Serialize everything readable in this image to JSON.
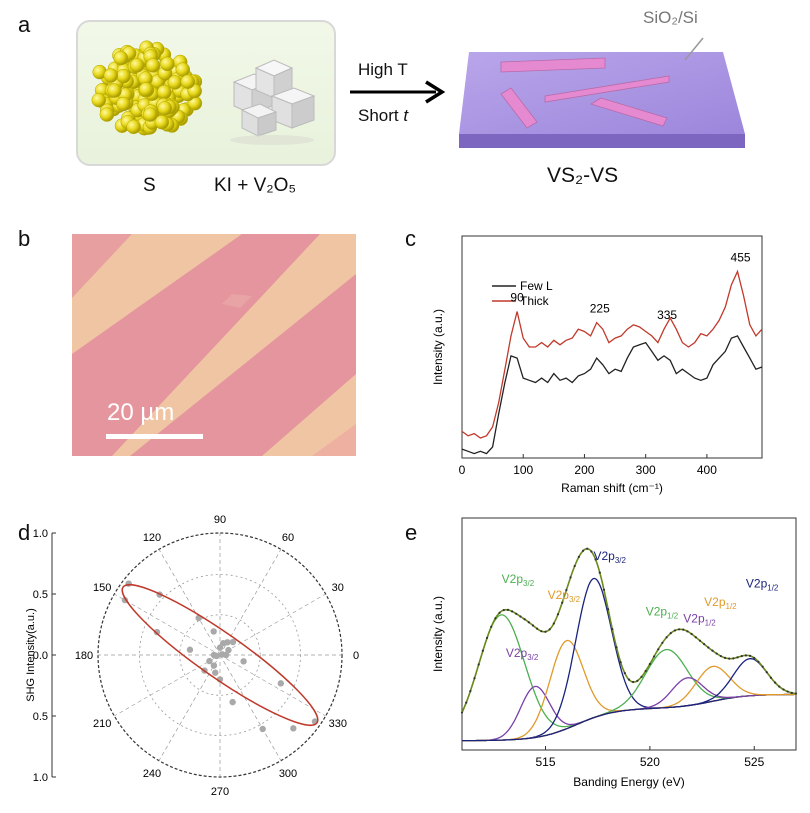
{
  "figure": {
    "panel_labels": [
      "a",
      "b",
      "c",
      "d",
      "e"
    ]
  },
  "panel_a": {
    "sulfur_label": "S",
    "precursor_label": "KI + V₂O₅",
    "arrow_top": "High T",
    "arrow_bottom_prefix": "Short ",
    "arrow_bottom_var": "t",
    "substrate_label": "SiO₂/Si",
    "product_label": "VS₂-VS"
  },
  "panel_b": {
    "scale_bar_label": "20 µm",
    "scale_bar_fraction_of_width": 0.34
  },
  "chart_data": [
    {
      "panel": "c",
      "type": "line",
      "xlabel": "Raman shift (cm⁻¹)",
      "ylabel": "Intensity (a.u.)",
      "xlim": [
        0,
        490
      ],
      "ylim": [
        0,
        1
      ],
      "xticks": [
        0,
        100,
        200,
        300,
        400
      ],
      "legend": [
        "Few L",
        "Thick"
      ],
      "legend_position": "top-left",
      "peak_labels": [
        {
          "label": "90",
          "x": 90
        },
        {
          "label": "225",
          "x": 225
        },
        {
          "label": "335",
          "x": 335
        },
        {
          "label": "455",
          "x": 455
        }
      ],
      "series": [
        {
          "name": "Few L",
          "color": "#222222",
          "x": [
            0,
            10,
            20,
            30,
            40,
            50,
            60,
            70,
            80,
            90,
            100,
            110,
            120,
            130,
            140,
            150,
            160,
            170,
            180,
            190,
            200,
            210,
            220,
            230,
            240,
            250,
            260,
            270,
            280,
            290,
            300,
            310,
            320,
            330,
            340,
            350,
            360,
            370,
            380,
            390,
            400,
            410,
            420,
            430,
            440,
            450,
            460,
            470,
            480,
            490
          ],
          "values": [
            0.04,
            0.03,
            0.02,
            0.03,
            0.02,
            0.05,
            0.2,
            0.34,
            0.46,
            0.45,
            0.36,
            0.35,
            0.34,
            0.36,
            0.34,
            0.38,
            0.35,
            0.36,
            0.34,
            0.37,
            0.38,
            0.4,
            0.45,
            0.42,
            0.38,
            0.4,
            0.39,
            0.45,
            0.5,
            0.51,
            0.52,
            0.48,
            0.44,
            0.46,
            0.44,
            0.38,
            0.4,
            0.38,
            0.36,
            0.35,
            0.36,
            0.42,
            0.45,
            0.48,
            0.54,
            0.55,
            0.5,
            0.45,
            0.4,
            0.41
          ]
        },
        {
          "name": "Thick",
          "color": "#c0392b",
          "x": [
            0,
            10,
            20,
            30,
            40,
            50,
            60,
            70,
            80,
            90,
            100,
            110,
            120,
            130,
            140,
            150,
            160,
            170,
            180,
            190,
            200,
            210,
            220,
            230,
            240,
            250,
            260,
            270,
            280,
            290,
            300,
            310,
            320,
            330,
            340,
            350,
            360,
            370,
            380,
            390,
            400,
            410,
            420,
            430,
            440,
            450,
            460,
            470,
            480,
            490
          ],
          "values": [
            0.12,
            0.1,
            0.11,
            0.09,
            0.1,
            0.14,
            0.25,
            0.4,
            0.55,
            0.66,
            0.54,
            0.5,
            0.5,
            0.52,
            0.5,
            0.53,
            0.51,
            0.53,
            0.54,
            0.58,
            0.57,
            0.55,
            0.61,
            0.58,
            0.52,
            0.54,
            0.55,
            0.58,
            0.6,
            0.59,
            0.57,
            0.55,
            0.52,
            0.58,
            0.63,
            0.58,
            0.52,
            0.5,
            0.52,
            0.56,
            0.55,
            0.58,
            0.62,
            0.68,
            0.78,
            0.84,
            0.73,
            0.6,
            0.55,
            0.58
          ]
        }
      ]
    },
    {
      "panel": "d",
      "type": "scatter",
      "subtype": "polar",
      "ylabel": "SHG Intensity(a.u.)",
      "radial_ticks": [
        "1.0",
        "0.5",
        "0.0",
        "0.5",
        "1.0"
      ],
      "angle_ticks": [
        0,
        30,
        60,
        90,
        120,
        150,
        180,
        210,
        240,
        270,
        300,
        330
      ],
      "fit_color": "#c0392b",
      "fit_major_angle_deg": 145,
      "points": [
        {
          "angle": 0,
          "r": 0.05
        },
        {
          "angle": 15,
          "r": 0.02
        },
        {
          "angle": 30,
          "r": 0.08
        },
        {
          "angle": 45,
          "r": 0.15
        },
        {
          "angle": 60,
          "r": 0.12
        },
        {
          "angle": 75,
          "r": 0.1
        },
        {
          "angle": 90,
          "r": 0.06
        },
        {
          "angle": 105,
          "r": 0.2
        },
        {
          "angle": 120,
          "r": 0.35
        },
        {
          "angle": 135,
          "r": 0.7
        },
        {
          "angle": 142,
          "r": 0.95
        },
        {
          "angle": 150,
          "r": 0.9
        },
        {
          "angle": 160,
          "r": 0.55
        },
        {
          "angle": 170,
          "r": 0.25
        },
        {
          "angle": 180,
          "r": 0.05
        },
        {
          "angle": 195,
          "r": 0.03
        },
        {
          "angle": 210,
          "r": 0.1
        },
        {
          "angle": 225,
          "r": 0.18
        },
        {
          "angle": 240,
          "r": 0.1
        },
        {
          "angle": 255,
          "r": 0.15
        },
        {
          "angle": 270,
          "r": 0.2
        },
        {
          "angle": 285,
          "r": 0.4
        },
        {
          "angle": 300,
          "r": 0.7
        },
        {
          "angle": 315,
          "r": 0.85
        },
        {
          "angle": 325,
          "r": 0.95
        },
        {
          "angle": 335,
          "r": 0.55
        },
        {
          "angle": 345,
          "r": 0.2
        }
      ]
    },
    {
      "panel": "e",
      "type": "line",
      "xlabel": "Banding Energy (eV)",
      "ylabel": "Intensity (a.u.)",
      "xlim": [
        511,
        527
      ],
      "ylim": [
        0,
        1
      ],
      "xticks": [
        515,
        520,
        525
      ],
      "peak_annotations": [
        {
          "base": "V2p",
          "sub": "3/2",
          "color": "#4caf50",
          "x": 512.9,
          "y": 0.72
        },
        {
          "base": "V2p",
          "sub": "3/2",
          "color": "#e09a2a",
          "x": 515.1,
          "y": 0.65
        },
        {
          "base": "V2p",
          "sub": "3/2",
          "color": "#1a237e",
          "x": 517.3,
          "y": 0.82
        },
        {
          "base": "V2p",
          "sub": "3/2",
          "color": "#7b3fa8",
          "x": 513.1,
          "y": 0.4
        },
        {
          "base": "V2p",
          "sub": "1/2",
          "color": "#4caf50",
          "x": 519.8,
          "y": 0.58
        },
        {
          "base": "V2p",
          "sub": "1/2",
          "color": "#7b3fa8",
          "x": 521.6,
          "y": 0.55
        },
        {
          "base": "V2p",
          "sub": "1/2",
          "color": "#e09a2a",
          "x": 522.6,
          "y": 0.62
        },
        {
          "base": "V2p",
          "sub": "1/2",
          "color": "#1a237e",
          "x": 524.6,
          "y": 0.7
        }
      ],
      "background_color": "#e08a2a",
      "envelope_color": "#6a8a1a",
      "components": [
        {
          "name": "V2p3/2 (green)",
          "color": "#4caf50",
          "center": 512.9,
          "height": 0.54,
          "width": 1.1
        },
        {
          "name": "V2p3/2 (purple)",
          "color": "#7b3fa8",
          "center": 514.5,
          "height": 0.22,
          "width": 0.7
        },
        {
          "name": "V2p3/2 (orange)",
          "color": "#e09a2a",
          "center": 516.0,
          "height": 0.38,
          "width": 0.8
        },
        {
          "name": "V2p3/2 (navy)",
          "color": "#1a237e",
          "center": 517.3,
          "height": 0.6,
          "width": 0.85
        },
        {
          "name": "V2p1/2 (green)",
          "color": "#4caf50",
          "center": 520.8,
          "height": 0.25,
          "width": 1.0
        },
        {
          "name": "V2p1/2 (purple)",
          "color": "#7b3fa8",
          "center": 521.8,
          "height": 0.12,
          "width": 0.75
        },
        {
          "name": "V2p1/2 (orange)",
          "color": "#e09a2a",
          "center": 523.0,
          "height": 0.15,
          "width": 0.8
        },
        {
          "name": "V2p1/2 (navy)",
          "color": "#1a237e",
          "center": 524.8,
          "height": 0.16,
          "width": 0.8
        }
      ]
    }
  ]
}
